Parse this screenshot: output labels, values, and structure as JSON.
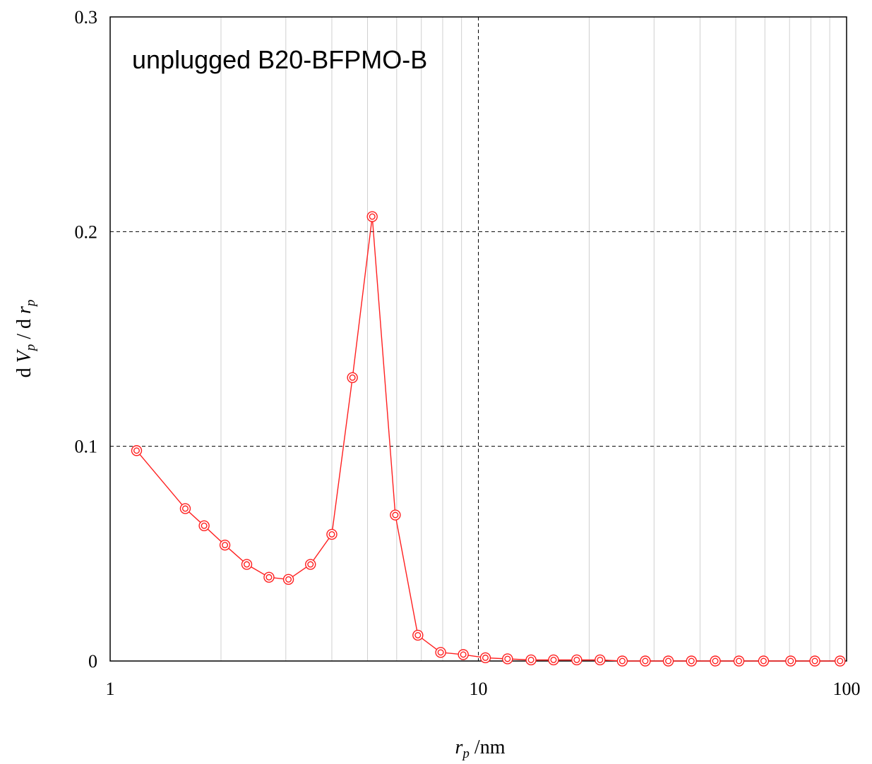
{
  "chart_data": {
    "type": "line",
    "xscale": "log",
    "xlim": [
      1,
      100
    ],
    "ylim": [
      0,
      0.3
    ],
    "xticks": [
      1,
      10,
      100
    ],
    "xtick_labels": [
      "1",
      "10",
      "100"
    ],
    "yticks": [
      0,
      0.1,
      0.2,
      0.3
    ],
    "ytick_labels": [
      "0",
      "0.1",
      "0.2",
      "0.3"
    ],
    "xlabel": {
      "main": "r",
      "sub": "p",
      "rest": " /nm"
    },
    "ylabel": {
      "p1": "d ",
      "v": "V",
      "vsub": "p",
      "p2": " / d ",
      "r": "r",
      "rsub": "p"
    },
    "annotation": "unplugged B20-BFPMO-B",
    "grid": {
      "major": "dashed",
      "minor_x": true
    },
    "colors": {
      "series": "#ff2020",
      "major_grid": "#000000",
      "minor_grid": "#d0d0d0"
    },
    "series": [
      {
        "marker": "double-circle",
        "x": [
          1.18,
          1.6,
          1.8,
          2.05,
          2.35,
          2.7,
          3.05,
          3.5,
          4.0,
          4.55,
          5.15,
          5.95,
          6.85,
          7.9,
          9.1,
          10.45,
          12.0,
          13.9,
          16.0,
          18.5,
          21.4,
          24.6,
          28.4,
          32.8,
          37.9,
          44.0,
          51.0,
          59.5,
          70.5,
          82.0,
          96.0
        ],
        "y": [
          0.098,
          0.071,
          0.063,
          0.054,
          0.045,
          0.039,
          0.038,
          0.045,
          0.059,
          0.132,
          0.207,
          0.068,
          0.012,
          0.004,
          0.003,
          0.0015,
          0.001,
          0.0005,
          0.0005,
          0.0005,
          0.0005,
          0.0,
          0.0,
          0.0,
          0.0,
          0.0,
          0.0,
          0.0,
          0.0,
          0.0,
          0.0
        ]
      }
    ]
  }
}
